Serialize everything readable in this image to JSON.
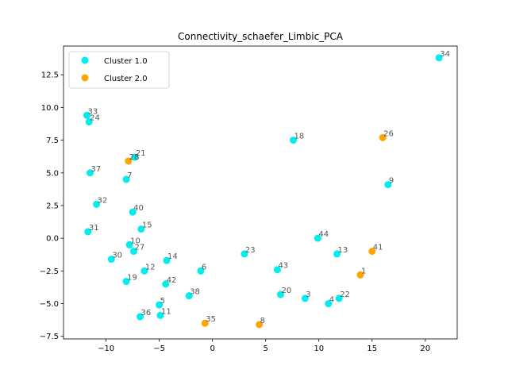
{
  "chart_data": {
    "type": "scatter",
    "title": "Connectivity_schaefer_Limbic_PCA",
    "xlabel": "",
    "ylabel": "",
    "xlim": [
      -14,
      23
    ],
    "ylim": [
      -7.7,
      14.7
    ],
    "x_ticks": [
      -10,
      -5,
      0,
      5,
      10,
      15,
      20
    ],
    "x_tick_labels": [
      "−10",
      "−5",
      "0",
      "5",
      "10",
      "15",
      "20"
    ],
    "y_ticks": [
      -7.5,
      -5.0,
      -2.5,
      0.0,
      2.5,
      5.0,
      7.5,
      10.0,
      12.5
    ],
    "y_tick_labels": [
      "−7.5",
      "−5.0",
      "−2.5",
      "0.0",
      "2.5",
      "5.0",
      "7.5",
      "10.0",
      "12.5"
    ],
    "grid": false,
    "legend_position": "top-left",
    "colors": {
      "Cluster 1.0": "#00eeee",
      "Cluster 2.0": "#ffa500"
    },
    "series": [
      {
        "name": "Cluster 1.0",
        "points": [
          {
            "label": "34",
            "x": 21.3,
            "y": 13.8
          },
          {
            "label": "33",
            "x": -11.8,
            "y": 9.4
          },
          {
            "label": "24",
            "x": -11.6,
            "y": 8.9
          },
          {
            "label": "18",
            "x": 7.6,
            "y": 7.5
          },
          {
            "label": "21",
            "x": -7.3,
            "y": 6.2
          },
          {
            "label": "37",
            "x": -11.5,
            "y": 5.0
          },
          {
            "label": "7",
            "x": -8.1,
            "y": 4.5
          },
          {
            "label": "9",
            "x": 16.5,
            "y": 4.1
          },
          {
            "label": "32",
            "x": -10.9,
            "y": 2.6
          },
          {
            "label": "40",
            "x": -7.5,
            "y": 2.0
          },
          {
            "label": "15",
            "x": -6.7,
            "y": 0.7
          },
          {
            "label": "31",
            "x": -11.7,
            "y": 0.5
          },
          {
            "label": "44",
            "x": 9.9,
            "y": 0.0
          },
          {
            "label": "10",
            "x": -7.8,
            "y": -0.5
          },
          {
            "label": "27",
            "x": -7.4,
            "y": -1.0
          },
          {
            "label": "13",
            "x": 11.7,
            "y": -1.2
          },
          {
            "label": "23",
            "x": 3.0,
            "y": -1.2
          },
          {
            "label": "30",
            "x": -9.5,
            "y": -1.6
          },
          {
            "label": "14",
            "x": -4.3,
            "y": -1.7
          },
          {
            "label": "43",
            "x": 6.1,
            "y": -2.4
          },
          {
            "label": "12",
            "x": -6.4,
            "y": -2.5
          },
          {
            "label": "6",
            "x": -1.1,
            "y": -2.5
          },
          {
            "label": "19",
            "x": -8.1,
            "y": -3.3
          },
          {
            "label": "42",
            "x": -4.4,
            "y": -3.5
          },
          {
            "label": "20",
            "x": 6.4,
            "y": -4.3
          },
          {
            "label": "38",
            "x": -2.2,
            "y": -4.4
          },
          {
            "label": "3",
            "x": 8.7,
            "y": -4.6
          },
          {
            "label": "22",
            "x": 11.9,
            "y": -4.6
          },
          {
            "label": "4",
            "x": 10.9,
            "y": -5.0
          },
          {
            "label": "5",
            "x": -5.0,
            "y": -5.1
          },
          {
            "label": "36",
            "x": -6.8,
            "y": -6.0
          },
          {
            "label": "11",
            "x": -4.9,
            "y": -5.9
          }
        ]
      },
      {
        "name": "Cluster 2.0",
        "points": [
          {
            "label": "26",
            "x": 16.0,
            "y": 7.7
          },
          {
            "label": "28",
            "x": -7.9,
            "y": 5.9
          },
          {
            "label": "41",
            "x": 15.0,
            "y": -1.0
          },
          {
            "label": "1",
            "x": 13.9,
            "y": -2.8
          },
          {
            "label": "35",
            "x": -0.7,
            "y": -6.5
          },
          {
            "label": "8",
            "x": 4.4,
            "y": -6.6
          }
        ]
      }
    ]
  }
}
